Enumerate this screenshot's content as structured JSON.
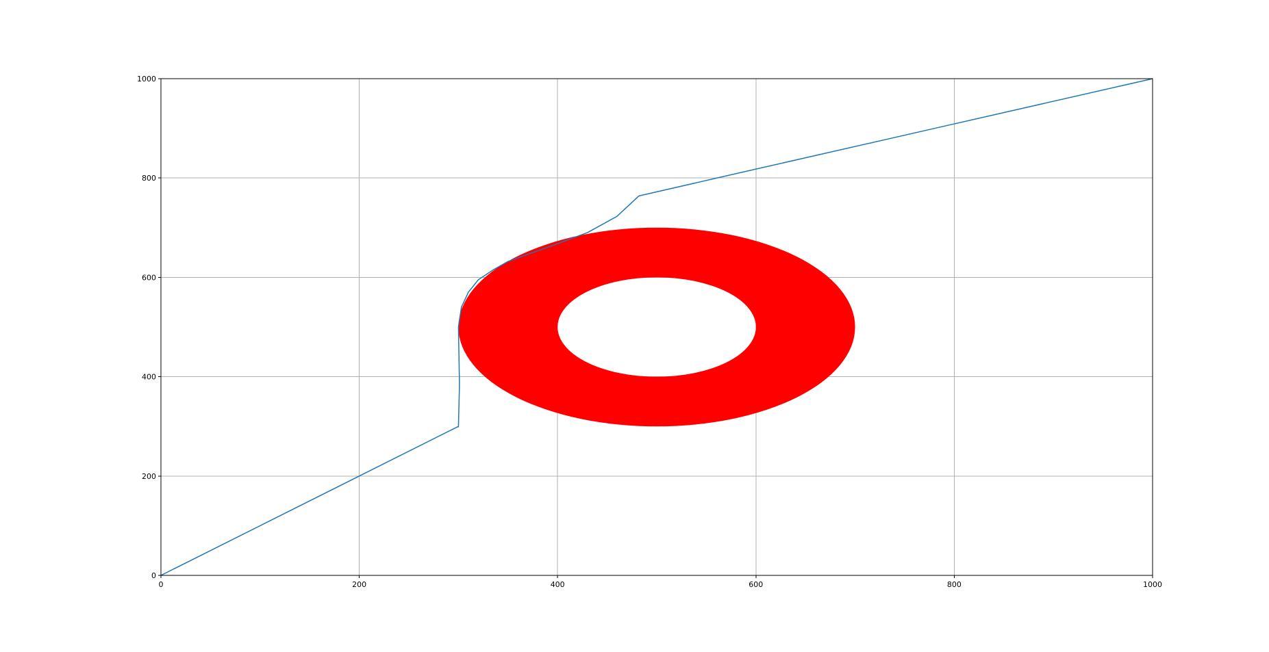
{
  "chart_data": {
    "type": "line",
    "xlim": [
      0,
      1000
    ],
    "ylim": [
      0,
      1000
    ],
    "x_ticks": [
      "0",
      "200",
      "400",
      "600",
      "800",
      "1000"
    ],
    "y_ticks": [
      "0",
      "200",
      "400",
      "600",
      "800",
      "1000"
    ],
    "grid": true,
    "title": "",
    "xlabel": "",
    "ylabel": "",
    "series": [
      {
        "color": "#1f77b4",
        "x": [
          0,
          299,
          300,
          301,
          301,
          300,
          303,
          310,
          320,
          335,
          350,
          368,
          385,
          400,
          430,
          460,
          482,
          600,
          800,
          1000
        ],
        "y": [
          0,
          299,
          299,
          380,
          390,
          500,
          540,
          570,
          595,
          615,
          632,
          645,
          657,
          668,
          690,
          723,
          764,
          818,
          909,
          1000
        ]
      }
    ],
    "shapes": [
      {
        "type": "ring",
        "color": "#ff0000",
        "center": [
          500,
          500
        ],
        "outer_radius": 200,
        "inner_radius": 100
      }
    ]
  }
}
